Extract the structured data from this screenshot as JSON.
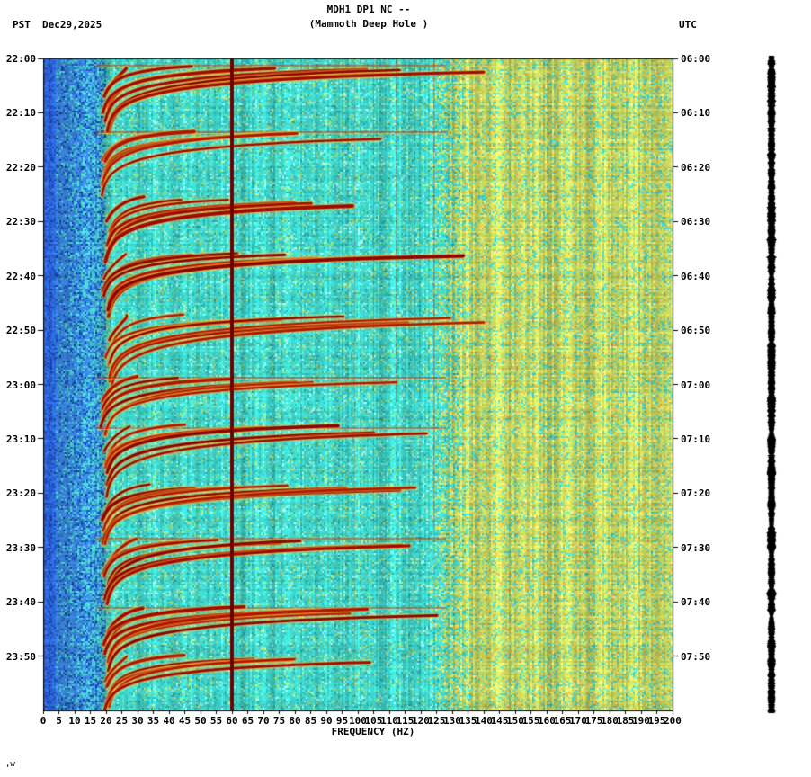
{
  "header": {
    "left_tz": "PST",
    "date": "Dec29,2025",
    "station_line": "MDH1 DP1 NC --",
    "location_line": "(Mammoth Deep Hole )",
    "right_tz": "UTC"
  },
  "footer": {
    "note": ",w"
  },
  "chart_data": {
    "type": "heatmap",
    "subtype": "seismic-spectrogram",
    "title": "MDH1 DP1 NC --",
    "subtitle": "(Mammoth Deep Hole )",
    "date": "Dec29,2025",
    "xlabel": "FREQUENCY (HZ)",
    "x_range_hz": [
      0,
      200
    ],
    "x_tick_step_hz": 5,
    "x_ticks": [
      0,
      5,
      10,
      15,
      20,
      25,
      30,
      35,
      40,
      45,
      50,
      55,
      60,
      65,
      70,
      75,
      80,
      85,
      90,
      95,
      100,
      105,
      110,
      115,
      120,
      125,
      130,
      135,
      140,
      145,
      150,
      155,
      160,
      165,
      170,
      175,
      180,
      185,
      190,
      195,
      200
    ],
    "y_axis_left": {
      "timezone": "PST",
      "ticks": [
        "22:00",
        "22:10",
        "22:20",
        "22:30",
        "22:40",
        "22:50",
        "23:00",
        "23:10",
        "23:20",
        "23:30",
        "23:40",
        "23:50"
      ]
    },
    "y_axis_right": {
      "timezone": "UTC",
      "ticks": [
        "06:00",
        "06:10",
        "06:20",
        "06:30",
        "06:40",
        "06:50",
        "07:00",
        "07:10",
        "07:20",
        "07:30",
        "07:40",
        "07:50"
      ]
    },
    "time_span_minutes": 120,
    "grid": false,
    "legend": "none",
    "features": [
      "continuous narrowband dark-red line at 60 Hz spanning full time range",
      "repeating upward-gliding red harmonic arcs between ~18 Hz and ~135 Hz recurring roughly every 10-12 minutes",
      "blue low-frequency background band below ~20 Hz",
      "speckled yellow-green broadband energy above ~135 Hz with vertical striping",
      "bright yellow/orange halos around harmonic arcs",
      "occasional horizontal red/yellow broadband streaks at event onsets",
      "black seismic amplitude trace strip drawn at right edge of page"
    ],
    "palette": {
      "background_cyan": "#3ed5cc",
      "low_freq_blue": "#3a84de",
      "arc_red": "#a00a00",
      "arc_halo_orange": "#ee781e",
      "arc_halo_yellow": "#ffd840",
      "line_60hz": "#6e0000",
      "high_band_yellow_green": "#c6d75c",
      "waveform_black": "#000000",
      "text_black": "#000000",
      "page_background": "#ffffff"
    }
  }
}
